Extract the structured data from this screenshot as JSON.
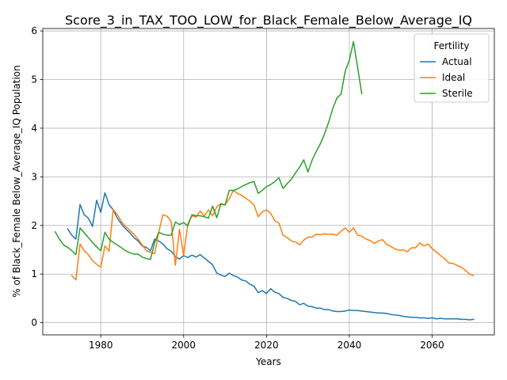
{
  "chart_data": {
    "type": "line",
    "title": "Score_3_in_TAX_TOO_LOW_for_Black_Female_Below_Average_IQ",
    "xlabel": "Years",
    "ylabel": "% of Black_Female Below_Average_IQ Population",
    "xlim": [
      1966,
      2075
    ],
    "ylim": [
      -0.25,
      6.05
    ],
    "x_ticks": [
      1980,
      2000,
      2020,
      2040,
      2060
    ],
    "y_ticks": [
      0,
      1,
      2,
      3,
      4,
      5,
      6
    ],
    "grid": true,
    "legend": {
      "title": "Fertility",
      "placement": "top-right"
    },
    "series": [
      {
        "name": "Actual",
        "color": "#1f77b4",
        "points": [
          [
            1972,
            1.93
          ],
          [
            1973,
            1.8
          ],
          [
            1974,
            1.72
          ],
          [
            1975,
            2.43
          ],
          [
            1976,
            2.22
          ],
          [
            1977,
            2.15
          ],
          [
            1978,
            1.98
          ],
          [
            1979,
            2.52
          ],
          [
            1980,
            2.27
          ],
          [
            1981,
            2.67
          ],
          [
            1982,
            2.43
          ],
          [
            1983,
            2.32
          ],
          [
            1984,
            2.15
          ],
          [
            1985,
            2.03
          ],
          [
            1986,
            1.93
          ],
          [
            1987,
            1.85
          ],
          [
            1988,
            1.75
          ],
          [
            1989,
            1.68
          ],
          [
            1990,
            1.58
          ],
          [
            1991,
            1.55
          ],
          [
            1992,
            1.48
          ],
          [
            1993,
            1.72
          ],
          [
            1994,
            1.68
          ],
          [
            1995,
            1.62
          ],
          [
            1996,
            1.52
          ],
          [
            1997,
            1.47
          ],
          [
            1998,
            1.36
          ],
          [
            1999,
            1.31
          ],
          [
            2000,
            1.38
          ],
          [
            2001,
            1.34
          ],
          [
            2002,
            1.39
          ],
          [
            2003,
            1.35
          ],
          [
            2004,
            1.4
          ],
          [
            2005,
            1.33
          ],
          [
            2006,
            1.26
          ],
          [
            2007,
            1.19
          ],
          [
            2008,
            1.02
          ],
          [
            2009,
            0.98
          ],
          [
            2010,
            0.95
          ],
          [
            2011,
            1.02
          ],
          [
            2012,
            0.97
          ],
          [
            2013,
            0.94
          ],
          [
            2014,
            0.88
          ],
          [
            2015,
            0.86
          ],
          [
            2016,
            0.79
          ],
          [
            2017,
            0.75
          ],
          [
            2018,
            0.62
          ],
          [
            2019,
            0.66
          ],
          [
            2020,
            0.6
          ],
          [
            2021,
            0.7
          ],
          [
            2022,
            0.63
          ],
          [
            2023,
            0.6
          ],
          [
            2024,
            0.52
          ],
          [
            2025,
            0.5
          ],
          [
            2026,
            0.46
          ],
          [
            2027,
            0.44
          ],
          [
            2028,
            0.37
          ],
          [
            2029,
            0.4
          ],
          [
            2030,
            0.34
          ],
          [
            2031,
            0.33
          ],
          [
            2032,
            0.3
          ],
          [
            2033,
            0.3
          ],
          [
            2034,
            0.27
          ],
          [
            2035,
            0.27
          ],
          [
            2036,
            0.24
          ],
          [
            2037,
            0.23
          ],
          [
            2038,
            0.23
          ],
          [
            2039,
            0.24
          ],
          [
            2040,
            0.26
          ],
          [
            2041,
            0.25
          ],
          [
            2042,
            0.25
          ],
          [
            2043,
            0.24
          ],
          [
            2044,
            0.23
          ],
          [
            2045,
            0.22
          ],
          [
            2046,
            0.21
          ],
          [
            2047,
            0.2
          ],
          [
            2048,
            0.2
          ],
          [
            2049,
            0.19
          ],
          [
            2050,
            0.17
          ],
          [
            2051,
            0.16
          ],
          [
            2052,
            0.15
          ],
          [
            2053,
            0.13
          ],
          [
            2054,
            0.12
          ],
          [
            2055,
            0.11
          ],
          [
            2056,
            0.11
          ],
          [
            2057,
            0.1
          ],
          [
            2058,
            0.1
          ],
          [
            2059,
            0.09
          ],
          [
            2060,
            0.1
          ],
          [
            2061,
            0.08
          ],
          [
            2062,
            0.09
          ],
          [
            2063,
            0.08
          ],
          [
            2064,
            0.08
          ],
          [
            2065,
            0.08
          ],
          [
            2066,
            0.08
          ],
          [
            2067,
            0.07
          ],
          [
            2068,
            0.07
          ],
          [
            2069,
            0.06
          ],
          [
            2070,
            0.07
          ]
        ]
      },
      {
        "name": "Ideal",
        "color": "#ff7f0e",
        "points": [
          [
            1973,
            0.97
          ],
          [
            1974,
            0.88
          ],
          [
            1975,
            1.62
          ],
          [
            1976,
            1.48
          ],
          [
            1977,
            1.4
          ],
          [
            1978,
            1.28
          ],
          [
            1979,
            1.2
          ],
          [
            1980,
            1.14
          ],
          [
            1981,
            1.58
          ],
          [
            1982,
            1.47
          ],
          [
            1983,
            2.33
          ],
          [
            1984,
            2.22
          ],
          [
            1985,
            2.08
          ],
          [
            1986,
            1.98
          ],
          [
            1987,
            1.9
          ],
          [
            1988,
            1.82
          ],
          [
            1989,
            1.72
          ],
          [
            1990,
            1.6
          ],
          [
            1991,
            1.48
          ],
          [
            1992,
            1.45
          ],
          [
            1993,
            1.42
          ],
          [
            1994,
            1.86
          ],
          [
            1995,
            2.22
          ],
          [
            1996,
            2.19
          ],
          [
            1997,
            2.08
          ],
          [
            1998,
            1.18
          ],
          [
            1999,
            1.92
          ],
          [
            2000,
            1.38
          ],
          [
            2001,
            2.03
          ],
          [
            2002,
            2.2
          ],
          [
            2003,
            2.17
          ],
          [
            2004,
            2.3
          ],
          [
            2005,
            2.2
          ],
          [
            2006,
            2.32
          ],
          [
            2007,
            2.2
          ],
          [
            2008,
            2.38
          ],
          [
            2009,
            2.45
          ],
          [
            2010,
            2.42
          ],
          [
            2011,
            2.55
          ],
          [
            2012,
            2.72
          ],
          [
            2013,
            2.66
          ],
          [
            2014,
            2.62
          ],
          [
            2015,
            2.56
          ],
          [
            2016,
            2.5
          ],
          [
            2017,
            2.42
          ],
          [
            2018,
            2.18
          ],
          [
            2019,
            2.28
          ],
          [
            2020,
            2.32
          ],
          [
            2021,
            2.25
          ],
          [
            2022,
            2.1
          ],
          [
            2023,
            2.05
          ],
          [
            2024,
            1.8
          ],
          [
            2025,
            1.75
          ],
          [
            2026,
            1.68
          ],
          [
            2027,
            1.66
          ],
          [
            2028,
            1.6
          ],
          [
            2029,
            1.7
          ],
          [
            2030,
            1.76
          ],
          [
            2031,
            1.76
          ],
          [
            2032,
            1.82
          ],
          [
            2033,
            1.81
          ],
          [
            2034,
            1.83
          ],
          [
            2035,
            1.82
          ],
          [
            2036,
            1.82
          ],
          [
            2037,
            1.8
          ],
          [
            2038,
            1.88
          ],
          [
            2039,
            1.95
          ],
          [
            2040,
            1.86
          ],
          [
            2041,
            1.95
          ],
          [
            2042,
            1.8
          ],
          [
            2043,
            1.78
          ],
          [
            2044,
            1.72
          ],
          [
            2045,
            1.69
          ],
          [
            2046,
            1.63
          ],
          [
            2047,
            1.68
          ],
          [
            2048,
            1.71
          ],
          [
            2049,
            1.61
          ],
          [
            2050,
            1.57
          ],
          [
            2051,
            1.52
          ],
          [
            2052,
            1.49
          ],
          [
            2053,
            1.5
          ],
          [
            2054,
            1.46
          ],
          [
            2055,
            1.54
          ],
          [
            2056,
            1.54
          ],
          [
            2057,
            1.64
          ],
          [
            2058,
            1.58
          ],
          [
            2059,
            1.62
          ],
          [
            2060,
            1.52
          ],
          [
            2061,
            1.46
          ],
          [
            2062,
            1.38
          ],
          [
            2063,
            1.32
          ],
          [
            2064,
            1.23
          ],
          [
            2065,
            1.22
          ],
          [
            2066,
            1.18
          ],
          [
            2067,
            1.14
          ],
          [
            2068,
            1.08
          ],
          [
            2069,
            1.0
          ],
          [
            2070,
            0.97
          ]
        ]
      },
      {
        "name": "Sterile",
        "color": "#2ca02c",
        "points": [
          [
            1969,
            1.87
          ],
          [
            1970,
            1.72
          ],
          [
            1971,
            1.6
          ],
          [
            1972,
            1.55
          ],
          [
            1973,
            1.48
          ],
          [
            1974,
            1.4
          ],
          [
            1975,
            1.95
          ],
          [
            1976,
            1.85
          ],
          [
            1977,
            1.75
          ],
          [
            1978,
            1.65
          ],
          [
            1979,
            1.56
          ],
          [
            1980,
            1.48
          ],
          [
            1981,
            1.86
          ],
          [
            1982,
            1.72
          ],
          [
            1983,
            1.65
          ],
          [
            1984,
            1.6
          ],
          [
            1985,
            1.54
          ],
          [
            1986,
            1.48
          ],
          [
            1987,
            1.44
          ],
          [
            1988,
            1.41
          ],
          [
            1989,
            1.41
          ],
          [
            1990,
            1.35
          ],
          [
            1991,
            1.32
          ],
          [
            1992,
            1.3
          ],
          [
            1993,
            1.65
          ],
          [
            1994,
            1.86
          ],
          [
            1995,
            1.82
          ],
          [
            1996,
            1.8
          ],
          [
            1997,
            1.8
          ],
          [
            1998,
            2.07
          ],
          [
            1999,
            2.02
          ],
          [
            2000,
            2.06
          ],
          [
            2001,
            1.99
          ],
          [
            2002,
            2.22
          ],
          [
            2003,
            2.2
          ],
          [
            2004,
            2.2
          ],
          [
            2005,
            2.18
          ],
          [
            2006,
            2.15
          ],
          [
            2007,
            2.4
          ],
          [
            2008,
            2.16
          ],
          [
            2009,
            2.44
          ],
          [
            2010,
            2.42
          ],
          [
            2011,
            2.72
          ],
          [
            2012,
            2.72
          ],
          [
            2013,
            2.75
          ],
          [
            2014,
            2.8
          ],
          [
            2015,
            2.84
          ],
          [
            2016,
            2.88
          ],
          [
            2017,
            2.9
          ],
          [
            2018,
            2.66
          ],
          [
            2019,
            2.72
          ],
          [
            2020,
            2.8
          ],
          [
            2021,
            2.84
          ],
          [
            2022,
            2.9
          ],
          [
            2023,
            2.98
          ],
          [
            2024,
            2.76
          ],
          [
            2025,
            2.86
          ],
          [
            2026,
            2.95
          ],
          [
            2027,
            3.08
          ],
          [
            2028,
            3.2
          ],
          [
            2029,
            3.35
          ],
          [
            2030,
            3.1
          ],
          [
            2031,
            3.34
          ],
          [
            2032,
            3.52
          ],
          [
            2033,
            3.68
          ],
          [
            2034,
            3.88
          ],
          [
            2035,
            4.12
          ],
          [
            2036,
            4.4
          ],
          [
            2037,
            4.62
          ],
          [
            2038,
            4.7
          ],
          [
            2039,
            5.17
          ],
          [
            2040,
            5.4
          ],
          [
            2041,
            5.78
          ],
          [
            2042,
            5.25
          ],
          [
            2043,
            4.71
          ]
        ]
      }
    ]
  }
}
